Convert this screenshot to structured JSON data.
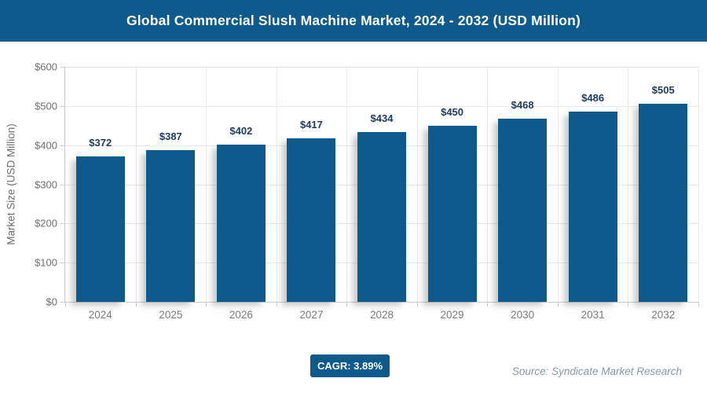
{
  "banner": {
    "title": "Global Commercial Slush Machine Market, 2024 - 2032 (USD Million)"
  },
  "footer": {
    "cagr_label": "CAGR: 3.89%",
    "source": "Source: Syndicate Market Research"
  },
  "colors": {
    "banner_bg": "#0E5A8B",
    "bar": "#0E5A8B",
    "value_label": "#1E3A5F",
    "axis_text": "#6F6F6F",
    "grid": "#E8E8E8",
    "axis_line": "#C6CBD0"
  },
  "chart_data": {
    "type": "bar",
    "title": "Global Commercial Slush Machine Market, 2024 - 2032 (USD Million)",
    "categories": [
      "2024",
      "2025",
      "2026",
      "2027",
      "2028",
      "2029",
      "2030",
      "2031",
      "2032"
    ],
    "values": [
      372,
      387,
      402,
      417,
      434,
      450,
      468,
      486,
      505
    ],
    "value_labels": [
      "$372",
      "$387",
      "$402",
      "$417",
      "$434",
      "$450",
      "$468",
      "$486",
      "$505"
    ],
    "xlabel": "",
    "ylabel": "Market Size (USD Million)",
    "ylim": [
      0,
      600
    ],
    "y_ticks": [
      0,
      100,
      200,
      300,
      400,
      500,
      600
    ],
    "y_tick_labels": [
      "$0",
      "$100",
      "$200",
      "$300",
      "$400",
      "$500",
      "$600"
    ],
    "grid": true,
    "legend": false
  }
}
